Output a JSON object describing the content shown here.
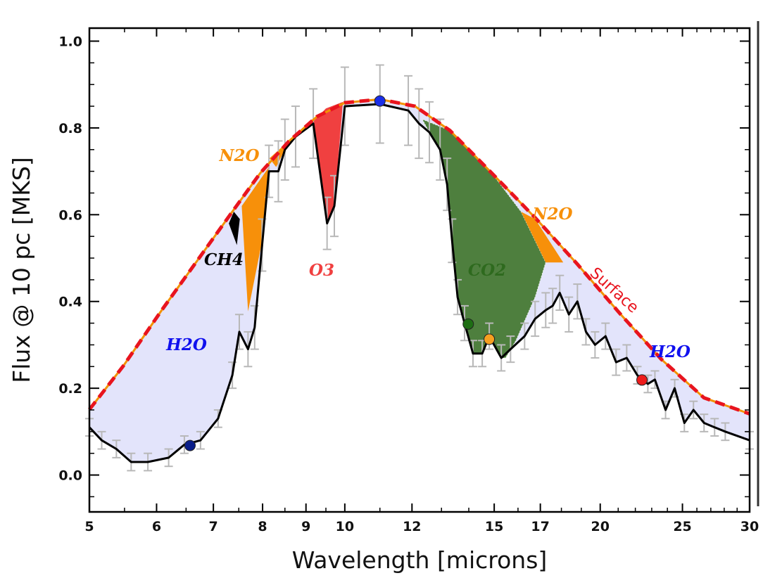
{
  "chart_data": {
    "type": "line",
    "title": "",
    "xlabel": "Wavelength [microns]",
    "ylabel": "Flux @ 10 pc [MKS]",
    "xscale": "log",
    "xlim": [
      5,
      30
    ],
    "ylim": [
      -0.085,
      1.03
    ],
    "xticks": [
      5,
      6,
      7,
      8,
      9,
      10,
      12,
      15,
      17,
      20,
      25,
      30
    ],
    "xtick_labels": [
      "5",
      "6",
      "7",
      "8",
      "9",
      "10",
      "12",
      "15",
      "17",
      "20",
      "25",
      "30"
    ],
    "yticks": [
      0.0,
      0.2,
      0.4,
      0.6,
      0.8,
      1.0
    ],
    "ytick_labels": [
      "0.0",
      "0.2",
      "0.4",
      "0.6",
      "0.8",
      "1.0"
    ],
    "grid": false,
    "colors": {
      "surface": "#e8141e",
      "surface_under": "#f39200",
      "spectrum": "#000000",
      "errorbar": "#b8b8b8",
      "H2O": "#e3e4fb",
      "N2O": "#f7900a",
      "CH4": "#000000",
      "O3": "#f04040",
      "CO2": "#4e7f3e"
    },
    "surface": {
      "label": "Surface",
      "x": [
        5.0,
        5.48,
        6.09,
        6.7,
        7.37,
        7.95,
        8.59,
        9.27,
        10.0,
        11.0,
        12.1,
        13.3,
        14.9,
        16.8,
        18.8,
        21.1,
        23.6,
        26.5,
        30.0
      ],
      "y": [
        0.151,
        0.251,
        0.381,
        0.494,
        0.607,
        0.696,
        0.769,
        0.826,
        0.858,
        0.866,
        0.85,
        0.794,
        0.696,
        0.591,
        0.486,
        0.372,
        0.267,
        0.178,
        0.141
      ]
    },
    "spectrum": {
      "x": [
        5.0,
        5.17,
        5.38,
        5.6,
        5.86,
        6.2,
        6.47,
        6.76,
        7.09,
        7.37,
        7.51,
        7.69,
        7.83,
        7.99,
        8.14,
        8.35,
        8.5,
        8.75,
        9.18,
        9.53,
        9.72,
        10.0,
        11.0,
        11.88,
        12.23,
        12.58,
        12.95,
        13.2,
        13.38,
        13.58,
        13.84,
        14.16,
        14.52,
        14.8,
        15.29,
        15.68,
        16.29,
        16.76,
        17.25,
        17.58,
        17.92,
        18.37,
        18.8,
        19.24,
        19.72,
        20.29,
        20.88,
        21.49,
        22.12,
        22.76,
        23.2,
        23.88,
        24.48,
        25.13,
        25.76,
        26.51,
        27.28,
        28.08,
        30.0
      ],
      "y": [
        0.11,
        0.08,
        0.06,
        0.03,
        0.03,
        0.04,
        0.07,
        0.08,
        0.13,
        0.23,
        0.33,
        0.29,
        0.34,
        0.53,
        0.7,
        0.7,
        0.75,
        0.78,
        0.81,
        0.58,
        0.62,
        0.85,
        0.855,
        0.84,
        0.81,
        0.79,
        0.75,
        0.67,
        0.54,
        0.41,
        0.35,
        0.28,
        0.28,
        0.32,
        0.27,
        0.29,
        0.32,
        0.36,
        0.38,
        0.39,
        0.42,
        0.37,
        0.4,
        0.33,
        0.3,
        0.32,
        0.26,
        0.27,
        0.23,
        0.21,
        0.22,
        0.15,
        0.2,
        0.12,
        0.15,
        0.12,
        0.11,
        0.1,
        0.08
      ],
      "err": [
        0.02,
        0.02,
        0.02,
        0.02,
        0.02,
        0.02,
        0.02,
        0.02,
        0.02,
        0.03,
        0.04,
        0.04,
        0.05,
        0.06,
        0.06,
        0.07,
        0.07,
        0.07,
        0.08,
        0.06,
        0.07,
        0.09,
        0.09,
        0.08,
        0.08,
        0.07,
        0.07,
        0.06,
        0.05,
        0.04,
        0.04,
        0.03,
        0.03,
        0.03,
        0.03,
        0.03,
        0.03,
        0.04,
        0.04,
        0.04,
        0.04,
        0.04,
        0.04,
        0.03,
        0.03,
        0.03,
        0.03,
        0.03,
        0.02,
        0.02,
        0.02,
        0.02,
        0.02,
        0.02,
        0.02,
        0.02,
        0.02,
        0.02,
        0.02
      ]
    },
    "bands": [
      {
        "name": "N2O",
        "x": [
          7.56,
          8.14,
          8.03,
          7.69
        ],
        "y": [
          0.62,
          0.71,
          0.56,
          0.377
        ]
      },
      {
        "name": "CH4",
        "x": [
          7.3,
          7.4,
          7.52,
          7.46
        ],
        "y": [
          0.58,
          0.607,
          0.59,
          0.53
        ]
      },
      {
        "name": "N2O",
        "x": [
          8.15,
          8.59,
          8.45,
          8.3
        ],
        "y": [
          0.73,
          0.77,
          0.74,
          0.71
        ]
      },
      {
        "name": "O3",
        "x": [
          9.18,
          9.5,
          9.95,
          9.72,
          9.53
        ],
        "y": [
          0.815,
          0.845,
          0.86,
          0.62,
          0.58
        ]
      },
      {
        "name": "CO2",
        "x": [
          12.34,
          13.3,
          14.9,
          16.13,
          17.25,
          16.76,
          15.91,
          15.47,
          15.29,
          14.8,
          14.52,
          14.16,
          13.84,
          13.58,
          13.38,
          13.2,
          12.95,
          12.58
        ],
        "y": [
          0.82,
          0.794,
          0.696,
          0.607,
          0.49,
          0.41,
          0.31,
          0.27,
          0.27,
          0.32,
          0.28,
          0.28,
          0.35,
          0.41,
          0.54,
          0.67,
          0.75,
          0.79
        ]
      },
      {
        "name": "N2O",
        "x": [
          16.13,
          16.76,
          18.09,
          17.25
        ],
        "y": [
          0.607,
          0.59,
          0.49,
          0.49
        ]
      }
    ],
    "markers": [
      {
        "x": 6.57,
        "y": 0.068,
        "color": "#0a1e8a"
      },
      {
        "x": 11.0,
        "y": 0.862,
        "color": "#1a2ee8"
      },
      {
        "x": 13.98,
        "y": 0.348,
        "color": "#1e6e14"
      },
      {
        "x": 14.8,
        "y": 0.313,
        "color": "#f7a020"
      },
      {
        "x": 22.4,
        "y": 0.219,
        "color": "#ee1c1c"
      }
    ],
    "annotations": [
      {
        "text": "N2O",
        "color": "#f7900a"
      },
      {
        "text": "CH4",
        "color": "#000000"
      },
      {
        "text": "O3",
        "color": "#f04040"
      },
      {
        "text": "H2O",
        "color": "#1010ee"
      },
      {
        "text": "CO2",
        "color": "#2e6a1e"
      },
      {
        "text": "N2O",
        "color": "#f7900a"
      },
      {
        "text": "Surface",
        "color": "#e8141e"
      },
      {
        "text": "H2O",
        "color": "#1010ee"
      }
    ]
  }
}
